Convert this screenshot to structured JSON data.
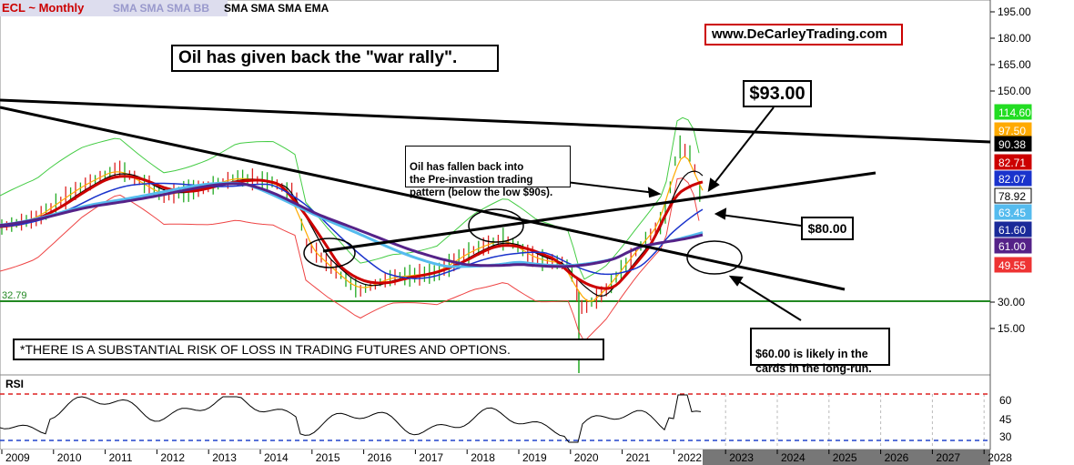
{
  "header": {
    "symbol_label": "ECL ~ Monthly",
    "indicators_dim": "SMA SMA SMA BB",
    "indicators_bold": "SMA SMA SMA EMA",
    "website": "www.DeCarleyTrading.com"
  },
  "annotations": {
    "headline": "Oil has given back the \"war rally\".",
    "pre_invasion_text": "Oil has fallen back into\nthe Pre-invastion trading\npattern (below the low $90s).",
    "price_93": "$93.00",
    "price_80": "$80.00",
    "forecast_60": "$60.00 is likely in the\ncards in the long-run.",
    "disclaimer": "*THERE IS A SUBSTANTIAL RISK OF LOSS IN TRADING FUTURES AND OPTIONS.",
    "support_level_label": "32.79",
    "rsi_label": "RSI"
  },
  "colors": {
    "up_bar": "#22aa22",
    "down_bar": "#dd2222",
    "support_line": "#228822",
    "overbought": "#dd2222",
    "oversold": "#2244cc",
    "website_border": "#cc0000"
  },
  "chart_data": {
    "type": "line",
    "title": "ECL ~ Monthly",
    "x_ticks": [
      "2009",
      "2010",
      "2011",
      "2012",
      "2013",
      "2014",
      "2015",
      "2016",
      "2017",
      "2018",
      "2019",
      "2020",
      "2021",
      "2022",
      "2023",
      "2024",
      "2025",
      "2026",
      "2027",
      "2028"
    ],
    "price_axis_ticks": [
      "195.00",
      "180.00",
      "165.00",
      "150.00",
      "30.00",
      "15.00"
    ],
    "rsi_axis_ticks": [
      "60",
      "45",
      "30"
    ],
    "price_tags": [
      {
        "value": "114.60",
        "color": "#22dd22",
        "text_color": "#ffffff"
      },
      {
        "value": "97.50",
        "color": "#ffaa00",
        "text_color": "#ffffff"
      },
      {
        "value": "90.38",
        "color": "#000000",
        "text_color": "#ffffff"
      },
      {
        "value": "82.71",
        "color": "#cc0000",
        "text_color": "#ffffff"
      },
      {
        "value": "82.07",
        "color": "#1a33cc",
        "text_color": "#ffffff"
      },
      {
        "value": "78.92",
        "color": "#ffffff",
        "text_color": "#000000"
      },
      {
        "value": "63.45",
        "color": "#55bbee",
        "text_color": "#ffffff"
      },
      {
        "value": "61.60",
        "color": "#1a2a99",
        "text_color": "#ffffff"
      },
      {
        "value": "61.00",
        "color": "#552288",
        "text_color": "#ffffff"
      },
      {
        "value": "49.55",
        "color": "#ee3333",
        "text_color": "#ffffff"
      }
    ],
    "support_level": 32.79,
    "rsi_levels": {
      "overbought": 70,
      "oversold": 30
    },
    "legend": "none",
    "grid": false
  }
}
